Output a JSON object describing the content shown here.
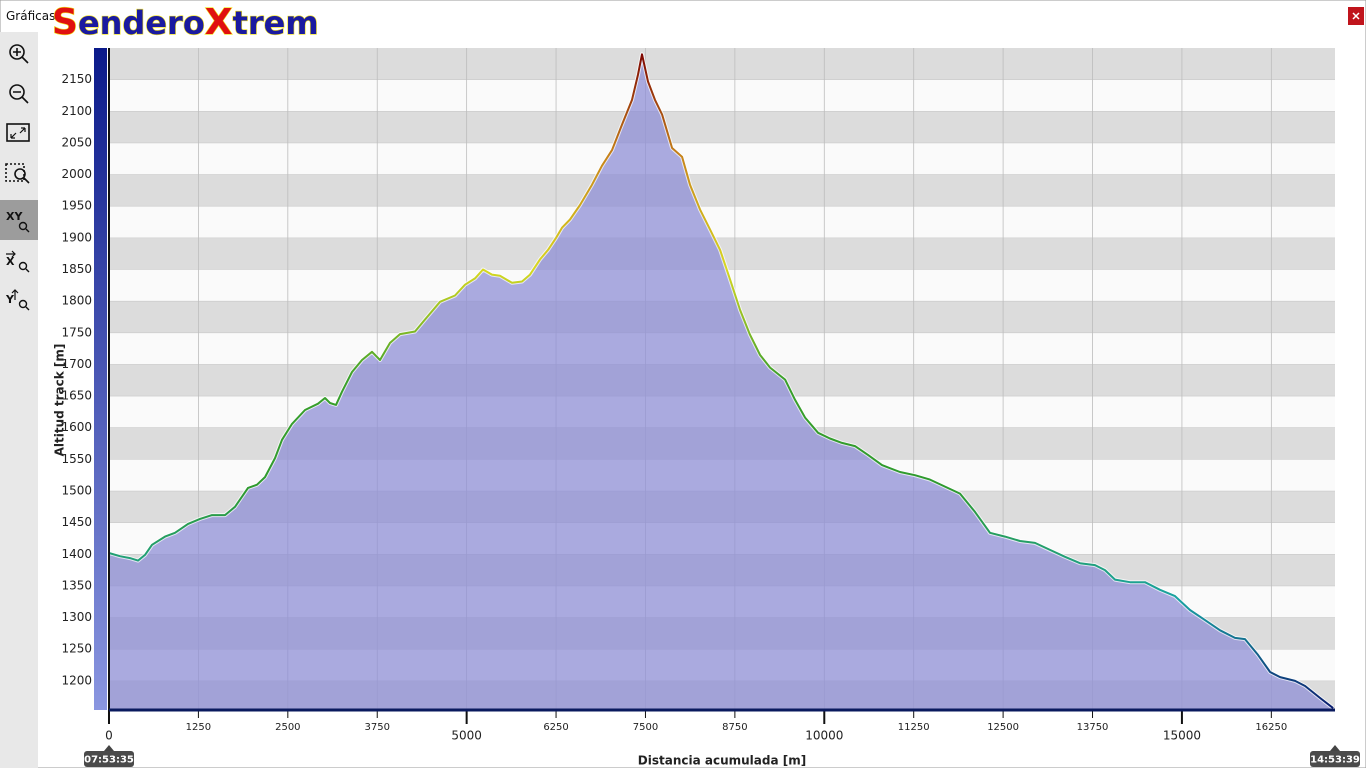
{
  "window_title": "Gráficas",
  "logo": [
    "S",
    "endero",
    "X",
    "trem"
  ],
  "toolbar": [
    "XY",
    "X",
    "Y"
  ],
  "chart_data": {
    "type": "area",
    "xlabel": "Distancia acumulada [m]",
    "ylabel": "Altitud track [m]",
    "annotations": [
      "07:53:35",
      "14:53:39"
    ],
    "x": [
      0,
      154,
      294,
      405,
      503,
      601,
      783,
      923,
      1104,
      1272,
      1440,
      1622,
      1761,
      1943,
      2069,
      2181,
      2321,
      2419,
      2558,
      2740,
      2922,
      3020,
      3090,
      3173,
      3257,
      3397,
      3537,
      3677,
      3789,
      3929,
      4068,
      4278,
      4418,
      4628,
      4837,
      4977,
      5117,
      5229,
      5354,
      5466,
      5634,
      5774,
      5886,
      6025,
      6137,
      6249,
      6333,
      6445,
      6585,
      6753,
      6893,
      7033,
      7172,
      7312,
      7396,
      7452,
      7536,
      7634,
      7732,
      7872,
      8012,
      8123,
      8263,
      8403,
      8543,
      8683,
      8823,
      8962,
      9102,
      9242,
      9452,
      9592,
      9732,
      9914,
      10080,
      10247,
      10429,
      10611,
      10807,
      11058,
      11268,
      11478,
      11687,
      11897,
      12107,
      12317,
      12526,
      12736,
      12946,
      13155,
      13365,
      13575,
      13785,
      13924,
      14064,
      14274,
      14484,
      14693,
      14903,
      15113,
      15323,
      15533,
      15742,
      15882,
      16064,
      16232,
      16372,
      16582,
      16722,
      16931,
      17113
    ],
    "values": [
      1402,
      1397,
      1394,
      1390,
      1399,
      1415,
      1428,
      1434,
      1448,
      1456,
      1462,
      1462,
      1475,
      1505,
      1510,
      1522,
      1552,
      1581,
      1606,
      1628,
      1638,
      1647,
      1639,
      1636,
      1657,
      1688,
      1707,
      1720,
      1707,
      1734,
      1748,
      1752,
      1771,
      1799,
      1809,
      1826,
      1836,
      1850,
      1842,
      1840,
      1829,
      1831,
      1842,
      1866,
      1881,
      1900,
      1916,
      1929,
      1952,
      1984,
      2014,
      2039,
      2079,
      2118,
      2158,
      2190,
      2147,
      2118,
      2095,
      2042,
      2028,
      1984,
      1945,
      1913,
      1881,
      1834,
      1786,
      1747,
      1715,
      1695,
      1676,
      1644,
      1616,
      1592,
      1583,
      1576,
      1571,
      1557,
      1541,
      1530,
      1525,
      1518,
      1507,
      1496,
      1467,
      1434,
      1428,
      1421,
      1418,
      1407,
      1396,
      1386,
      1383,
      1375,
      1360,
      1356,
      1356,
      1344,
      1334,
      1312,
      1296,
      1280,
      1268,
      1266,
      1241,
      1214,
      1206,
      1200,
      1192,
      1173,
      1157
    ],
    "color": "#8f8fd6",
    "line_colors": [
      "#0a1a6e",
      "#1aa3a3",
      "#2e9a2e",
      "#3aa02a",
      "#d8d820",
      "#c8861a",
      "#7a0000"
    ],
    "band_color": "#dcdcdc",
    "grid": true,
    "xlim": [
      0,
      17140
    ],
    "ylim": [
      1154,
      2200
    ],
    "xticks": [
      0,
      1250,
      2500,
      3750,
      5000,
      6250,
      7500,
      8750,
      10000,
      11250,
      12500,
      13750,
      15000,
      16250
    ],
    "yticks": [
      1200,
      1250,
      1300,
      1350,
      1400,
      1450,
      1500,
      1550,
      1600,
      1650,
      1700,
      1750,
      1800,
      1850,
      1900,
      1950,
      2000,
      2050,
      2100,
      2150
    ]
  }
}
